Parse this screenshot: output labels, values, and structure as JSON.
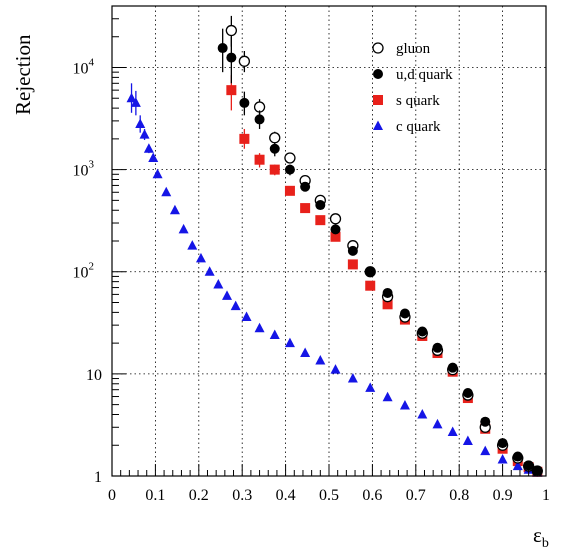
{
  "chart_data": {
    "type": "scatter",
    "xlabel": "ε",
    "xlabel_sub": "b",
    "ylabel": "Rejection",
    "xlim": [
      0,
      1
    ],
    "ylim": [
      1,
      40000
    ],
    "yscale": "log",
    "grid": true,
    "legend_position": "top-right",
    "x_ticks": [
      {
        "value": 0,
        "label": "0"
      },
      {
        "value": 0.1,
        "label": "0.1"
      },
      {
        "value": 0.2,
        "label": "0.2"
      },
      {
        "value": 0.3,
        "label": "0.3"
      },
      {
        "value": 0.4,
        "label": "0.4"
      },
      {
        "value": 0.5,
        "label": "0.5"
      },
      {
        "value": 0.6,
        "label": "0.6"
      },
      {
        "value": 0.7,
        "label": "0.7"
      },
      {
        "value": 0.8,
        "label": "0.8"
      },
      {
        "value": 0.9,
        "label": "0.9"
      },
      {
        "value": 1,
        "label": "1"
      }
    ],
    "y_ticks": [
      {
        "value": 1,
        "label": "1"
      },
      {
        "value": 10,
        "label": "10"
      },
      {
        "value": 100,
        "label": "10",
        "exp": "2"
      },
      {
        "value": 1000,
        "label": "10",
        "exp": "3"
      },
      {
        "value": 10000,
        "label": "10",
        "exp": "4"
      }
    ],
    "series": [
      {
        "name": "gluon",
        "marker": "circle-open",
        "color": "#000000",
        "points": [
          [
            0.275,
            23000,
            32000,
            16000
          ],
          [
            0.305,
            11500,
            14500,
            9000
          ],
          [
            0.34,
            4100,
            4900,
            3400
          ],
          [
            0.375,
            2050,
            2350,
            1800
          ],
          [
            0.41,
            1300,
            1450,
            1150
          ],
          [
            0.445,
            780,
            840,
            720
          ],
          [
            0.48,
            500,
            540,
            465
          ],
          [
            0.515,
            330,
            350,
            310
          ],
          [
            0.555,
            180,
            190,
            170
          ],
          [
            0.595,
            100,
            105,
            95
          ],
          [
            0.635,
            57,
            59,
            55
          ],
          [
            0.675,
            36,
            37,
            35
          ],
          [
            0.715,
            25,
            25.5,
            24.5
          ],
          [
            0.75,
            17,
            17.4,
            16.6
          ],
          [
            0.785,
            11,
            11.2,
            10.8
          ],
          [
            0.82,
            6.2,
            6.3,
            6.1
          ],
          [
            0.86,
            3.0,
            3.05,
            2.95
          ],
          [
            0.9,
            2.0,
            2.03,
            1.97
          ],
          [
            0.935,
            1.5,
            1.52,
            1.48
          ],
          [
            0.96,
            1.25,
            1.27,
            1.23
          ],
          [
            0.98,
            1.12,
            1.13,
            1.11
          ]
        ]
      },
      {
        "name": "u,d quark",
        "marker": "circle-filled",
        "color": "#000000",
        "points": [
          [
            0.255,
            15500,
            24000,
            9000
          ],
          [
            0.275,
            12500,
            20000,
            7000
          ],
          [
            0.305,
            4500,
            5800,
            3400
          ],
          [
            0.34,
            3100,
            3800,
            2500
          ],
          [
            0.375,
            1600,
            1850,
            1350
          ],
          [
            0.41,
            1000,
            1120,
            880
          ],
          [
            0.445,
            680,
            740,
            620
          ],
          [
            0.48,
            450,
            480,
            420
          ],
          [
            0.515,
            260,
            275,
            245
          ],
          [
            0.555,
            160,
            168,
            152
          ],
          [
            0.595,
            100,
            104,
            96
          ],
          [
            0.635,
            62,
            64,
            60
          ],
          [
            0.675,
            39,
            40,
            38
          ],
          [
            0.715,
            26,
            26.5,
            25.5
          ],
          [
            0.75,
            18,
            18.4,
            17.6
          ],
          [
            0.785,
            11.5,
            11.7,
            11.3
          ],
          [
            0.82,
            6.5,
            6.6,
            6.4
          ],
          [
            0.86,
            3.4,
            3.45,
            3.35
          ],
          [
            0.9,
            2.1,
            2.13,
            2.07
          ],
          [
            0.935,
            1.55,
            1.57,
            1.53
          ],
          [
            0.96,
            1.27,
            1.29,
            1.25
          ],
          [
            0.98,
            1.13,
            1.14,
            1.12
          ]
        ]
      },
      {
        "name": "s quark",
        "marker": "square-filled",
        "color": "#e8211b",
        "points": [
          [
            0.275,
            6000,
            8400,
            3800
          ],
          [
            0.305,
            2000,
            2500,
            1600
          ],
          [
            0.34,
            1250,
            1450,
            1050
          ],
          [
            0.375,
            1000,
            1120,
            880
          ],
          [
            0.41,
            620,
            680,
            565
          ],
          [
            0.445,
            420,
            450,
            390
          ],
          [
            0.48,
            320,
            340,
            300
          ],
          [
            0.515,
            220,
            232,
            208
          ],
          [
            0.555,
            118,
            123,
            113
          ],
          [
            0.595,
            73,
            75,
            71
          ],
          [
            0.635,
            48,
            49.5,
            46.5
          ],
          [
            0.675,
            34,
            35,
            33
          ],
          [
            0.715,
            23.5,
            24,
            23
          ],
          [
            0.75,
            16,
            16.4,
            15.6
          ],
          [
            0.785,
            10.5,
            10.7,
            10.3
          ],
          [
            0.82,
            5.8,
            5.9,
            5.7
          ],
          [
            0.86,
            2.9,
            2.95,
            2.85
          ],
          [
            0.9,
            1.85,
            1.88,
            1.82
          ],
          [
            0.935,
            1.4,
            1.42,
            1.38
          ],
          [
            0.96,
            1.22,
            1.24,
            1.2
          ],
          [
            0.98,
            1.1,
            1.11,
            1.09
          ]
        ]
      },
      {
        "name": "c quark",
        "marker": "triangle-filled",
        "color": "#1515e6",
        "points": [
          [
            0.045,
            5000,
            7000,
            3600
          ],
          [
            0.055,
            4500,
            5900,
            3400
          ],
          [
            0.065,
            2800,
            3400,
            2300
          ],
          [
            0.075,
            2200,
            2500,
            1950
          ],
          [
            0.085,
            1600,
            1760,
            1450
          ],
          [
            0.095,
            1300,
            1400,
            1200
          ],
          [
            0.105,
            900,
            960,
            840
          ],
          [
            0.125,
            600,
            630,
            570
          ],
          [
            0.145,
            400,
            415,
            385
          ],
          [
            0.165,
            260,
            268,
            252
          ],
          [
            0.185,
            180,
            185,
            175
          ],
          [
            0.205,
            135,
            138,
            132
          ],
          [
            0.225,
            100,
            102,
            98
          ],
          [
            0.245,
            75,
            76.5,
            73.5
          ],
          [
            0.265,
            58,
            59,
            57
          ],
          [
            0.285,
            46,
            46.8,
            45.2
          ],
          [
            0.31,
            36,
            36.6,
            35.4
          ],
          [
            0.34,
            28,
            28.4,
            27.6
          ],
          [
            0.375,
            24,
            24.3,
            23.7
          ],
          [
            0.41,
            20,
            20.2,
            19.8
          ],
          [
            0.445,
            16,
            16.2,
            15.8
          ],
          [
            0.48,
            13.5,
            13.6,
            13.4
          ],
          [
            0.515,
            11,
            11.1,
            10.9
          ],
          [
            0.555,
            9.0,
            9.1,
            8.9
          ],
          [
            0.595,
            7.3,
            7.38,
            7.22
          ],
          [
            0.635,
            5.9,
            5.96,
            5.84
          ],
          [
            0.675,
            4.9,
            4.95,
            4.85
          ],
          [
            0.715,
            4.0,
            4.04,
            3.96
          ],
          [
            0.75,
            3.2,
            3.23,
            3.17
          ],
          [
            0.785,
            2.7,
            2.73,
            2.67
          ],
          [
            0.82,
            2.2,
            2.22,
            2.18
          ],
          [
            0.86,
            1.75,
            1.77,
            1.73
          ],
          [
            0.9,
            1.45,
            1.47,
            1.43
          ],
          [
            0.935,
            1.25,
            1.27,
            1.23
          ],
          [
            0.96,
            1.15,
            1.17,
            1.13
          ],
          [
            0.98,
            1.08,
            1.09,
            1.07
          ]
        ]
      }
    ]
  }
}
